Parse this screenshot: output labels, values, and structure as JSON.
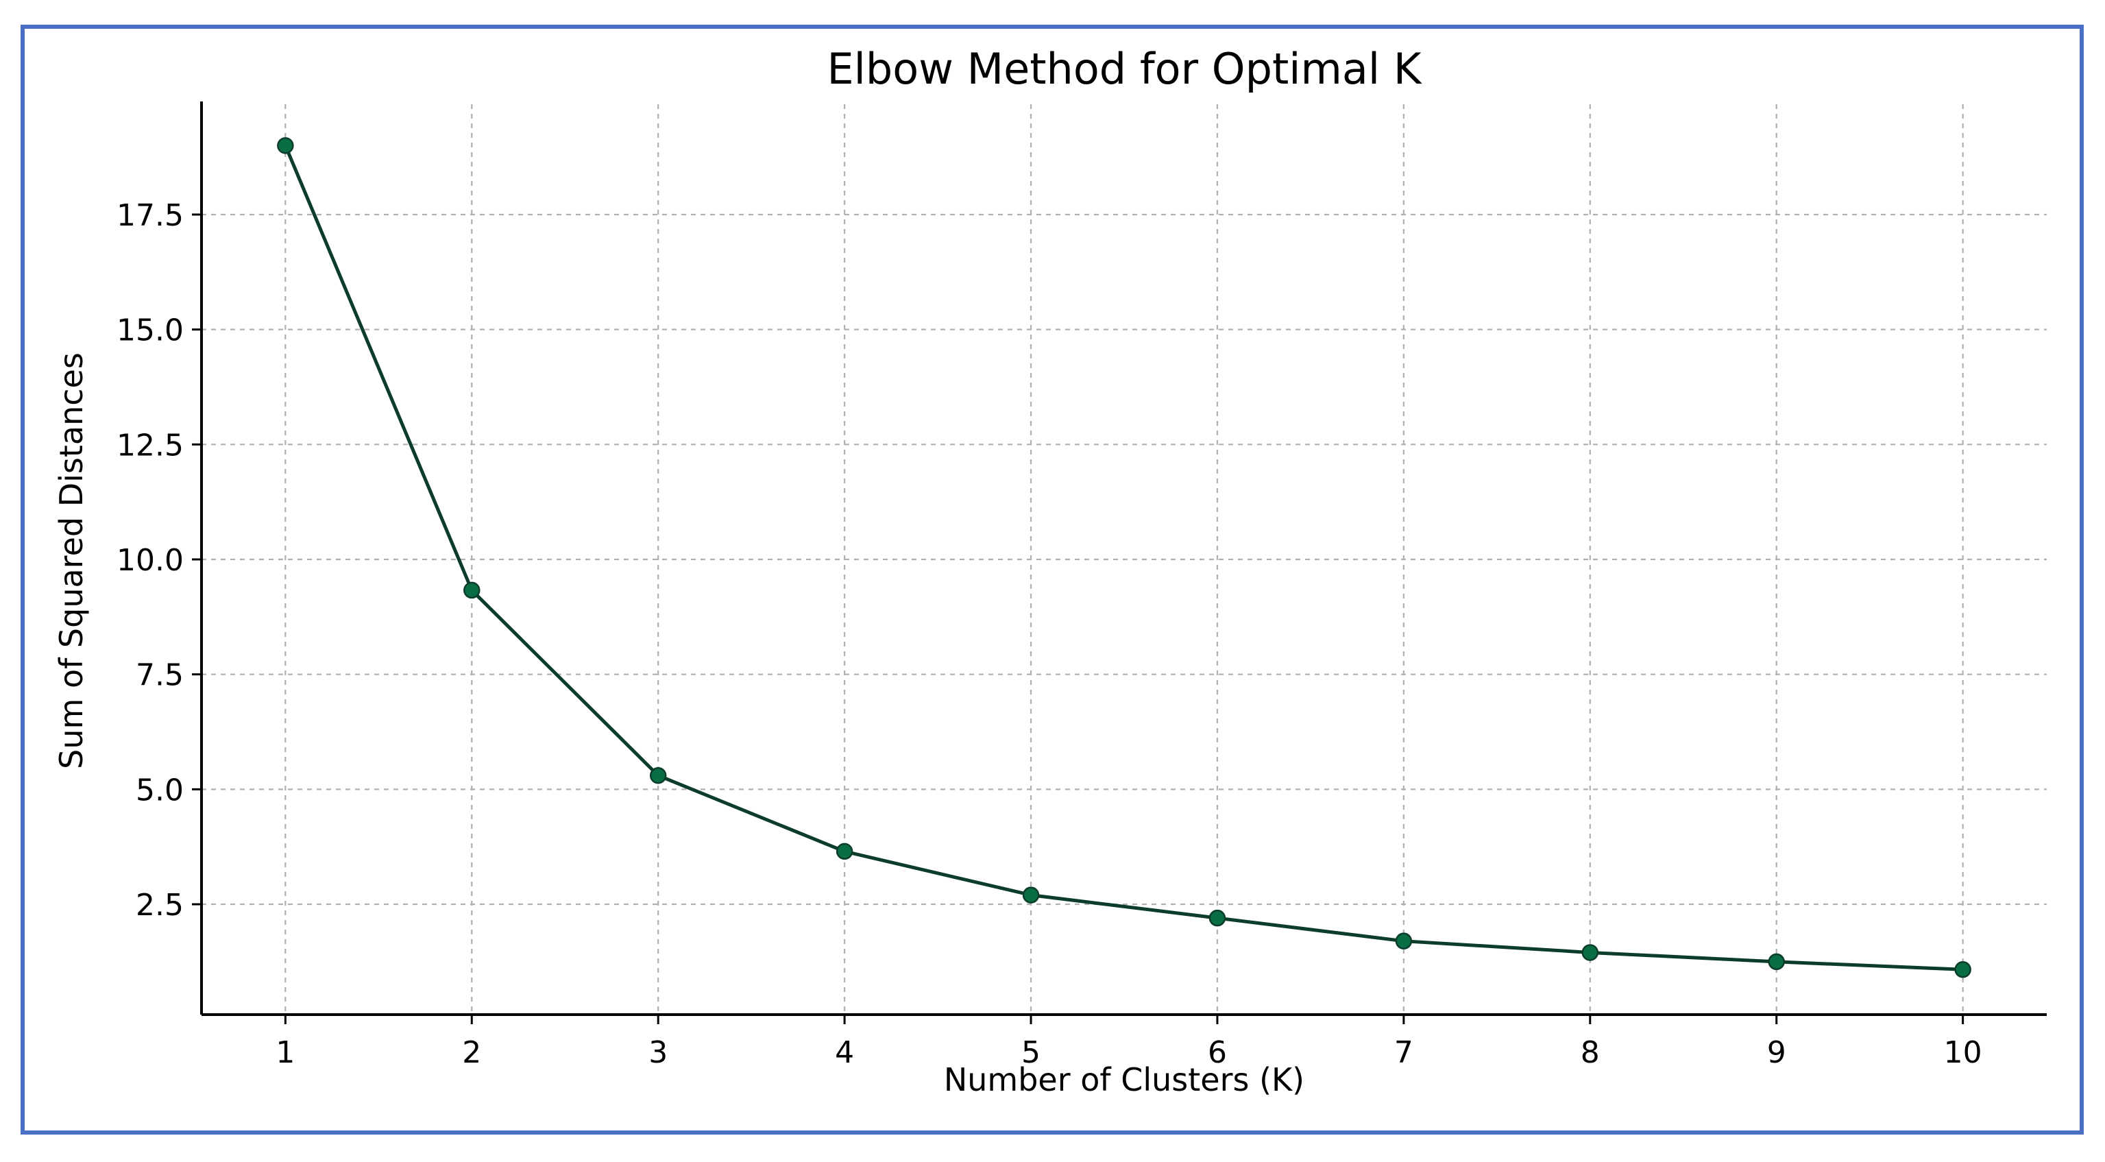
{
  "chart_data": {
    "type": "line",
    "title": "Elbow Method for Optimal K",
    "xlabel": "Number of Clusters (K)",
    "ylabel": "Sum of Squared Distances",
    "x": [
      1,
      2,
      3,
      4,
      5,
      6,
      7,
      8,
      9,
      10
    ],
    "xticks": [
      "1",
      "2",
      "3",
      "4",
      "5",
      "6",
      "7",
      "8",
      "9",
      "10"
    ],
    "yticks": [
      2.5,
      5.0,
      7.5,
      10.0,
      12.5,
      15.0,
      17.5
    ],
    "ytick_labels": [
      "2.5",
      "5.0",
      "7.5",
      "10.0",
      "12.5",
      "15.0",
      "17.5"
    ],
    "series": [
      {
        "values": [
          19.0,
          9.33,
          5.3,
          3.65,
          2.7,
          2.2,
          1.7,
          1.45,
          1.25,
          1.08
        ],
        "line_color": "#0b3d2a",
        "marker_color": "#0a6e45"
      }
    ],
    "xlim": [
      0.55,
      10.45
    ],
    "ylim": [
      0.1,
      19.9
    ],
    "grid": true
  }
}
